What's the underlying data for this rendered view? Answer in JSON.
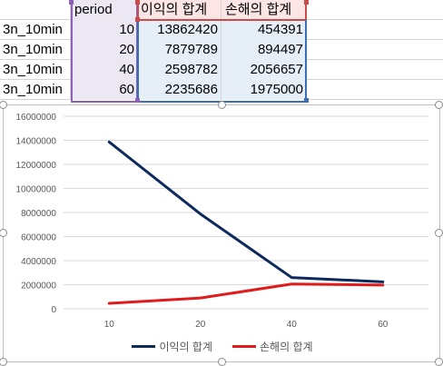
{
  "sheet": {
    "header": {
      "a": "",
      "b": "period",
      "c": "이익의 합계",
      "d": "손해의 합계"
    },
    "rows": [
      {
        "a": "3n_10min",
        "b": "10",
        "c": "13862420",
        "d": "454391"
      },
      {
        "a": "3n_10min",
        "b": "20",
        "c": "7879789",
        "d": "894497"
      },
      {
        "a": "3n_10min",
        "b": "40",
        "c": "2598782",
        "d": "2056657"
      },
      {
        "a": "3n_10min",
        "b": "60",
        "c": "2235686",
        "d": "1975000"
      }
    ]
  },
  "colors": {
    "series_profit": "#0e2a5c",
    "series_loss": "#e01b1b",
    "axis_text": "#595959",
    "gridline": "#d9d9d9"
  },
  "chart_data": {
    "type": "line",
    "categories": [
      "10",
      "20",
      "40",
      "60"
    ],
    "series": [
      {
        "name": "이익의 합계",
        "values": [
          13862420,
          7879789,
          2598782,
          2235686
        ]
      },
      {
        "name": "손해의 합계",
        "values": [
          454391,
          894497,
          2056657,
          1975000
        ]
      }
    ],
    "ylim": [
      0,
      16000000
    ],
    "yticks": [
      "0",
      "2000000",
      "4000000",
      "6000000",
      "8000000",
      "10000000",
      "12000000",
      "14000000",
      "16000000"
    ],
    "grid": true,
    "legend": "bottom"
  }
}
